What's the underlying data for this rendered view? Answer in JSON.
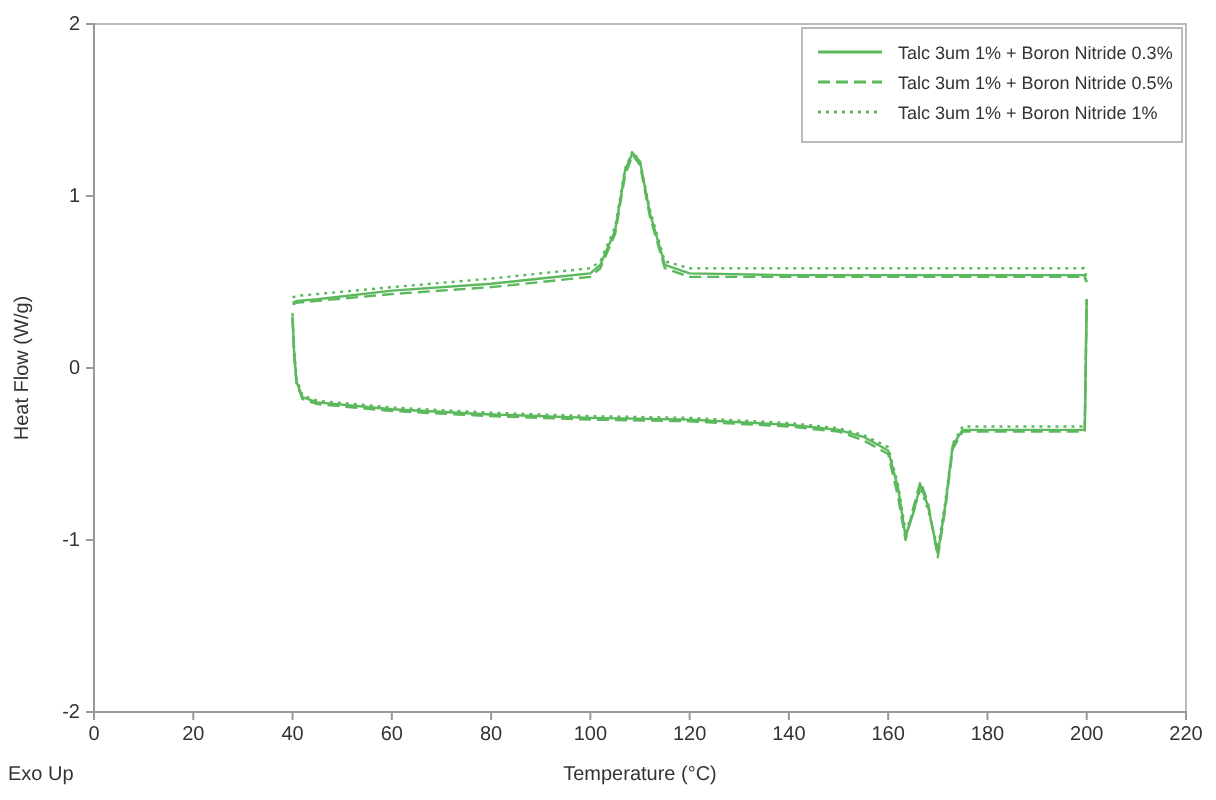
{
  "chart_data": {
    "type": "line",
    "xlabel": "Temperature (°C)",
    "ylabel": "Heat Flow (W/g)",
    "annotations": [
      "Exo Up"
    ],
    "xlim": [
      0,
      220
    ],
    "xticks": [
      0,
      20,
      40,
      60,
      80,
      100,
      120,
      140,
      160,
      180,
      200,
      220
    ],
    "ylim": [
      -2,
      2
    ],
    "yticks": [
      -2,
      -1,
      0,
      1,
      2
    ],
    "grid": false,
    "legend": "top right",
    "series": [
      {
        "name": "Talc 3um 1% + Boron Nitride 0.3%",
        "color": "#5cb85c",
        "line_style": "solid",
        "x": [
          40,
          40.3,
          40.8,
          42,
          45,
          60,
          80,
          100,
          120,
          140,
          150,
          155,
          160,
          162,
          163.5,
          165,
          166.5,
          168,
          170,
          171.5,
          173,
          175,
          180,
          190,
          199.6,
          200
        ],
        "values": [
          0.3,
          0.1,
          -0.08,
          -0.17,
          -0.2,
          -0.24,
          -0.27,
          -0.29,
          -0.3,
          -0.33,
          -0.36,
          -0.4,
          -0.48,
          -0.7,
          -0.98,
          -0.85,
          -0.68,
          -0.8,
          -1.08,
          -0.8,
          -0.45,
          -0.36,
          -0.36,
          -0.36,
          -0.36,
          0.4
        ]
      },
      {
        "color": "#5cb85c",
        "line_style": "solid",
        "x": [
          40,
          41,
          45,
          60,
          80,
          90,
          100,
          102,
          105,
          107,
          108.5,
          110,
          112,
          115,
          120,
          140,
          160,
          180,
          198,
          199.5,
          200
        ],
        "values": [
          0.38,
          0.39,
          0.4,
          0.45,
          0.49,
          0.52,
          0.55,
          0.6,
          0.8,
          1.15,
          1.25,
          1.2,
          0.9,
          0.6,
          0.55,
          0.54,
          0.54,
          0.54,
          0.54,
          0.54,
          0.5
        ]
      },
      {
        "name": "Talc 3um 1% + Boron Nitride 0.5%",
        "color": "#5cb85c",
        "line_style": "dashed",
        "x": [
          40,
          40.3,
          40.8,
          42,
          45,
          60,
          80,
          100,
          120,
          140,
          150,
          155,
          160,
          162,
          163.5,
          165,
          166.5,
          168,
          170,
          171.5,
          173,
          175,
          180,
          190,
          199.6,
          200
        ],
        "values": [
          0.29,
          0.08,
          -0.09,
          -0.18,
          -0.21,
          -0.25,
          -0.28,
          -0.3,
          -0.31,
          -0.34,
          -0.37,
          -0.42,
          -0.5,
          -0.75,
          -1.0,
          -0.82,
          -0.66,
          -0.78,
          -1.1,
          -0.82,
          -0.47,
          -0.37,
          -0.37,
          -0.37,
          -0.37,
          0.4
        ]
      },
      {
        "color": "#5cb85c",
        "line_style": "dashed",
        "x": [
          40,
          41,
          45,
          60,
          80,
          90,
          100,
          102,
          105,
          107,
          108.5,
          110,
          112,
          115,
          120,
          140,
          160,
          180,
          198,
          199.5,
          200
        ],
        "values": [
          0.37,
          0.38,
          0.39,
          0.43,
          0.47,
          0.5,
          0.53,
          0.58,
          0.78,
          1.12,
          1.24,
          1.18,
          0.88,
          0.58,
          0.53,
          0.53,
          0.53,
          0.53,
          0.53,
          0.53,
          0.5
        ]
      },
      {
        "name": "Talc 3um 1% + Boron Nitride 1%",
        "color": "#5cb85c",
        "line_style": "dotted",
        "x": [
          40,
          40.3,
          40.8,
          42,
          45,
          60,
          80,
          100,
          120,
          140,
          150,
          155,
          160,
          162,
          163.5,
          165,
          166.5,
          168,
          170,
          171.5,
          173,
          175,
          180,
          190,
          199.6,
          200
        ],
        "values": [
          0.32,
          0.12,
          -0.06,
          -0.16,
          -0.19,
          -0.23,
          -0.26,
          -0.28,
          -0.29,
          -0.32,
          -0.35,
          -0.39,
          -0.46,
          -0.68,
          -0.95,
          -0.84,
          -0.7,
          -0.82,
          -1.05,
          -0.78,
          -0.44,
          -0.34,
          -0.34,
          -0.34,
          -0.34,
          0.42
        ]
      },
      {
        "color": "#5cb85c",
        "line_style": "dotted",
        "x": [
          40,
          41,
          45,
          60,
          80,
          90,
          100,
          102,
          105,
          107,
          108.5,
          110,
          112,
          115,
          120,
          140,
          160,
          180,
          198,
          199.5,
          200
        ],
        "values": [
          0.41,
          0.42,
          0.43,
          0.47,
          0.52,
          0.55,
          0.58,
          0.62,
          0.82,
          1.16,
          1.26,
          1.2,
          0.92,
          0.62,
          0.58,
          0.58,
          0.58,
          0.58,
          0.58,
          0.58,
          0.52
        ]
      }
    ]
  }
}
